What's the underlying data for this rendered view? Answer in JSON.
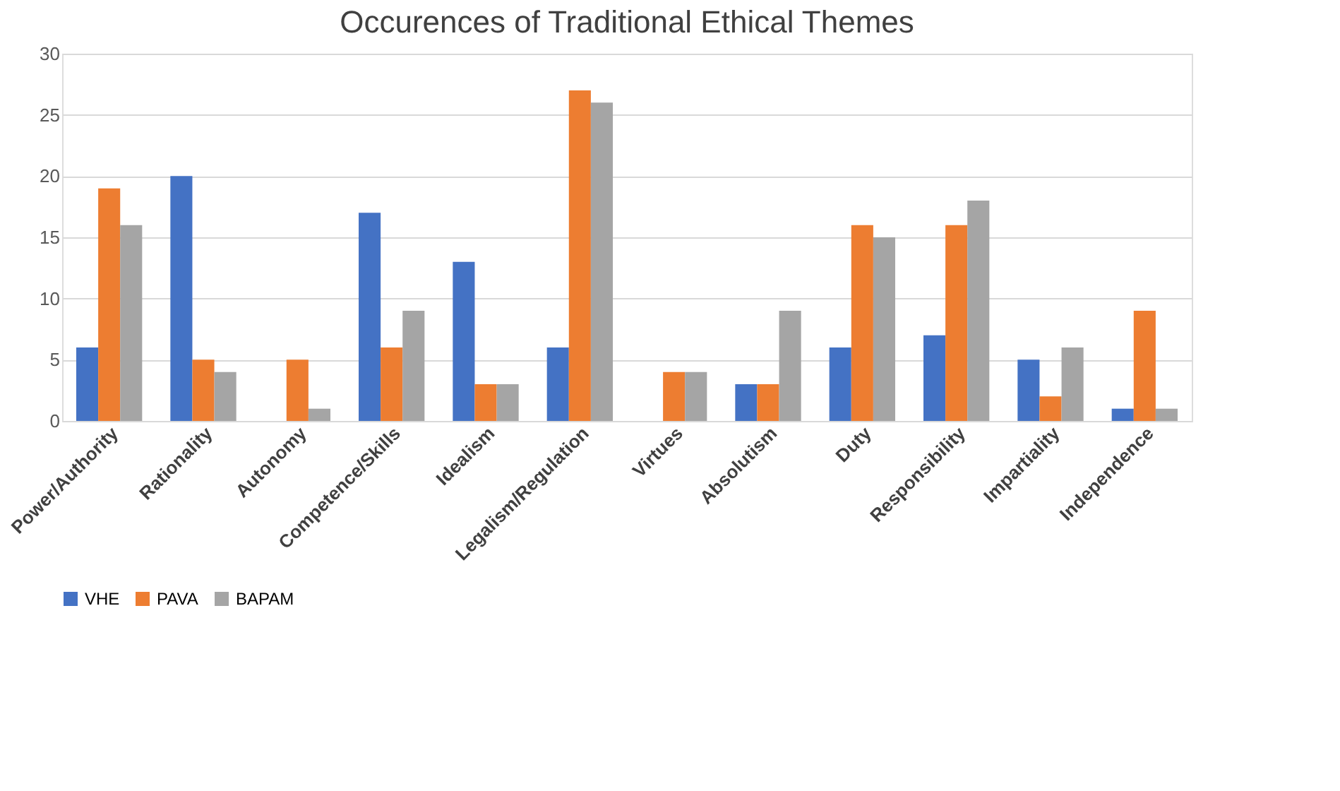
{
  "chart_data": {
    "type": "bar",
    "title": "Occurences of Traditional Ethical Themes",
    "categories": [
      "Power/Authority",
      "Rationality",
      "Autonomy",
      "Competence/Skills",
      "Idealism",
      "Legalism/Regulation",
      "Virtues",
      "Absolutism",
      "Duty",
      "Responsibility",
      "Impartiality",
      "Independence"
    ],
    "series": [
      {
        "name": "VHE",
        "color": "#4472c4",
        "values": [
          6,
          20,
          0,
          17,
          13,
          6,
          0,
          3,
          6,
          7,
          5,
          1
        ]
      },
      {
        "name": "PAVA",
        "color": "#ed7d31",
        "values": [
          19,
          5,
          5,
          6,
          3,
          27,
          4,
          3,
          16,
          16,
          2,
          9
        ]
      },
      {
        "name": "BAPAM",
        "color": "#a5a5a5",
        "values": [
          16,
          4,
          1,
          9,
          3,
          26,
          4,
          9,
          15,
          18,
          6,
          1
        ]
      }
    ],
    "ylim": [
      0,
      30
    ],
    "yticks": [
      0,
      5,
      10,
      15,
      20,
      25,
      30
    ],
    "grid": "y",
    "legend": "bottom"
  }
}
